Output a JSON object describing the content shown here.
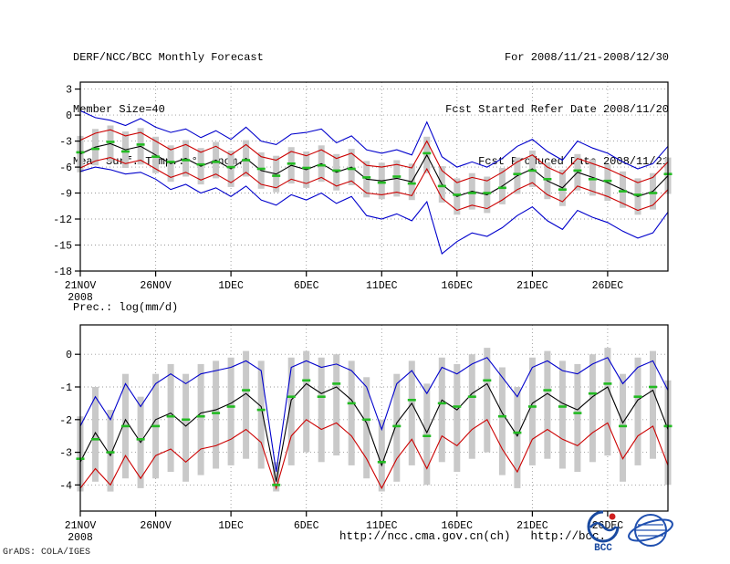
{
  "header": {
    "left_lines": [
      "DERF/NCC/BCC Monthly Forecast",
      "Member Size=40",
      "Mean Surf. Temp.: °C Anom."
    ],
    "right_lines": [
      "For 2008/11/21-2008/12/30",
      "Fcst Started Refer Date 2008/11/20",
      "Fcst Produced Date 2008/11/21"
    ]
  },
  "footer": {
    "url_ncc": "http://ncc.cma.gov.cn(ch)",
    "url_bcc": "http://bcc.",
    "grads_stamp": "GrADS: COLA/IGES",
    "logos": [
      {
        "name": "bcc-logo",
        "label": "BCC"
      },
      {
        "name": "cma-ncc-logo",
        "label": ""
      }
    ]
  },
  "colors": {
    "envelope_line": "#0000cc",
    "quartile_line": "#cc0000",
    "mean_line": "#000000",
    "median_dash": "#22bb22",
    "spread_bar": "#c9c9c9",
    "grid": "#999999",
    "text": "#000000"
  },
  "chart_data": [
    {
      "type": "line",
      "panel": "temperature",
      "title": "Mean Surf. Temp.: °C Anom.",
      "ylim": [
        -18,
        3
      ],
      "yticks": [
        3,
        0,
        -3,
        -6,
        -9,
        -12,
        -15,
        -18
      ],
      "n": 40,
      "x_axis": {
        "tick_days": [
          0,
          5,
          10,
          15,
          20,
          25,
          30,
          35
        ],
        "tick_labels": [
          "21NOV",
          "26NOV",
          "1DEC",
          "6DEC",
          "11DEC",
          "16DEC",
          "21DEC",
          "26DEC"
        ],
        "year_label": "2008"
      },
      "series": [
        {
          "name": "ensemble-max",
          "color": "#0000cc",
          "values": [
            0.5,
            -0.3,
            -0.6,
            -1.2,
            -0.4,
            -1.4,
            -2.0,
            -1.6,
            -2.6,
            -1.8,
            -2.8,
            -1.4,
            -3.0,
            -3.4,
            -2.2,
            -2.0,
            -1.6,
            -3.2,
            -2.4,
            -4.0,
            -4.4,
            -4.0,
            -4.6,
            -0.8,
            -4.8,
            -6.0,
            -5.4,
            -6.0,
            -5.0,
            -3.6,
            -2.8,
            -4.2,
            -5.2,
            -3.0,
            -3.8,
            -4.4,
            -5.4,
            -6.2,
            -5.6,
            -3.6
          ]
        },
        {
          "name": "upper-quartile",
          "color": "#cc0000",
          "values": [
            -2.9,
            -2.1,
            -1.7,
            -2.4,
            -2.0,
            -3.0,
            -4.0,
            -3.4,
            -4.3,
            -3.6,
            -4.6,
            -3.4,
            -4.8,
            -5.2,
            -4.2,
            -4.7,
            -4.0,
            -5.0,
            -4.4,
            -5.8,
            -6.0,
            -5.7,
            -6.1,
            -3.0,
            -6.4,
            -7.8,
            -7.2,
            -7.6,
            -6.6,
            -5.4,
            -4.6,
            -6.0,
            -6.8,
            -5.0,
            -5.6,
            -6.2,
            -7.0,
            -7.8,
            -7.2,
            -5.4
          ]
        },
        {
          "name": "ensemble-mean",
          "color": "#000000",
          "values": [
            -4.5,
            -3.7,
            -3.3,
            -4.0,
            -3.6,
            -4.6,
            -5.6,
            -5.0,
            -5.9,
            -5.2,
            -6.2,
            -5.0,
            -6.4,
            -6.8,
            -5.8,
            -6.3,
            -5.6,
            -6.6,
            -6.0,
            -7.4,
            -7.6,
            -7.3,
            -7.7,
            -4.6,
            -8.0,
            -9.4,
            -8.8,
            -9.2,
            -8.2,
            -7.0,
            -6.2,
            -7.6,
            -8.4,
            -6.6,
            -7.2,
            -7.8,
            -8.6,
            -9.4,
            -8.8,
            -7.0
          ]
        },
        {
          "name": "lower-quartile",
          "color": "#cc0000",
          "values": [
            -6.1,
            -5.3,
            -4.9,
            -5.6,
            -5.2,
            -6.2,
            -7.2,
            -6.6,
            -7.5,
            -6.8,
            -7.8,
            -6.6,
            -8.0,
            -8.4,
            -7.4,
            -7.9,
            -7.2,
            -8.2,
            -7.6,
            -9.0,
            -9.2,
            -8.9,
            -9.3,
            -6.2,
            -9.6,
            -11.0,
            -10.4,
            -10.8,
            -9.8,
            -8.6,
            -7.8,
            -9.2,
            -10.0,
            -8.2,
            -8.8,
            -9.4,
            -10.2,
            -11.0,
            -10.4,
            -8.6
          ]
        },
        {
          "name": "ensemble-min",
          "color": "#0000cc",
          "values": [
            -6.5,
            -6.0,
            -6.3,
            -6.8,
            -6.6,
            -7.4,
            -8.6,
            -8.0,
            -9.0,
            -8.4,
            -9.4,
            -8.2,
            -9.8,
            -10.4,
            -9.2,
            -9.8,
            -9.0,
            -10.2,
            -9.4,
            -11.6,
            -12.0,
            -11.4,
            -12.2,
            -10.0,
            -16.0,
            -14.6,
            -13.6,
            -14.0,
            -13.0,
            -11.6,
            -10.6,
            -12.2,
            -13.2,
            -11.0,
            -11.8,
            -12.4,
            -13.4,
            -14.2,
            -13.6,
            -11.2
          ]
        }
      ],
      "median_dashes": {
        "name": "ensemble-median",
        "color": "#22bb22",
        "values": [
          -4.3,
          -3.9,
          -3.1,
          -4.2,
          -3.4,
          -4.8,
          -5.4,
          -5.2,
          -5.7,
          -5.4,
          -6.0,
          -5.2,
          -6.2,
          -7.0,
          -5.6,
          -6.1,
          -5.8,
          -6.4,
          -6.2,
          -7.2,
          -7.8,
          -7.1,
          -7.9,
          -4.4,
          -8.2,
          -9.2,
          -9.0,
          -9.0,
          -8.4,
          -6.8,
          -6.4,
          -7.4,
          -8.6,
          -6.4,
          -7.4,
          -7.6,
          -8.8,
          -9.2,
          -9.0,
          -6.8
        ]
      },
      "bars": {
        "name": "ensemble-spread",
        "color": "#c9c9c9",
        "top": [
          -2.4,
          -1.6,
          -1.2,
          -1.9,
          -1.5,
          -2.5,
          -3.5,
          -2.9,
          -3.8,
          -3.1,
          -4.1,
          -2.9,
          -4.3,
          -4.7,
          -3.7,
          -4.2,
          -3.5,
          -4.5,
          -3.9,
          -5.3,
          -5.5,
          -5.2,
          -5.6,
          -2.5,
          -5.9,
          -7.3,
          -6.7,
          -7.1,
          -6.1,
          -4.9,
          -4.1,
          -5.5,
          -6.3,
          -4.5,
          -5.1,
          -5.7,
          -6.5,
          -7.3,
          -6.7,
          -4.9
        ],
        "bottom": [
          -6.6,
          -5.8,
          -5.4,
          -6.1,
          -5.7,
          -6.7,
          -7.7,
          -7.1,
          -8.0,
          -7.3,
          -8.3,
          -7.1,
          -8.5,
          -8.9,
          -7.9,
          -8.4,
          -7.7,
          -8.7,
          -8.1,
          -9.5,
          -9.7,
          -9.4,
          -9.8,
          -6.7,
          -10.1,
          -11.5,
          -10.9,
          -11.3,
          -10.3,
          -9.1,
          -8.3,
          -9.7,
          -10.5,
          -8.7,
          -9.3,
          -9.9,
          -10.7,
          -11.5,
          -10.9,
          -9.1
        ]
      }
    },
    {
      "type": "line",
      "panel": "precipitation",
      "title": "Prec.: log(mm/d)",
      "ylim": [
        -4,
        0
      ],
      "yticks": [
        0,
        -1,
        -2,
        -3,
        -4
      ],
      "n": 40,
      "x_axis": {
        "tick_days": [
          0,
          5,
          10,
          15,
          20,
          25,
          30,
          35
        ],
        "tick_labels": [
          "21NOV",
          "26NOV",
          "1DEC",
          "6DEC",
          "11DEC",
          "16DEC",
          "21DEC",
          "26DEC"
        ],
        "year_label": "2008"
      },
      "series": [
        {
          "name": "ensemble-max",
          "color": "#0000cc",
          "values": [
            -2.2,
            -1.3,
            -2.0,
            -0.9,
            -1.6,
            -0.9,
            -0.6,
            -0.9,
            -0.6,
            -0.5,
            -0.4,
            -0.2,
            -0.5,
            -3.6,
            -0.4,
            -0.2,
            -0.4,
            -0.3,
            -0.5,
            -1.0,
            -2.3,
            -0.9,
            -0.5,
            -1.2,
            -0.4,
            -0.6,
            -0.3,
            -0.1,
            -0.7,
            -1.3,
            -0.4,
            -0.2,
            -0.5,
            -0.6,
            -0.3,
            -0.1,
            -0.9,
            -0.4,
            -0.2,
            -1.1
          ]
        },
        {
          "name": "ensemble-mean",
          "color": "#000000",
          "values": [
            -3.3,
            -2.4,
            -3.1,
            -2.0,
            -2.7,
            -2.0,
            -1.8,
            -2.2,
            -1.8,
            -1.7,
            -1.5,
            -1.2,
            -1.6,
            -3.9,
            -1.4,
            -0.9,
            -1.2,
            -1.0,
            -1.4,
            -2.1,
            -3.4,
            -2.1,
            -1.5,
            -2.4,
            -1.4,
            -1.7,
            -1.2,
            -0.9,
            -1.8,
            -2.5,
            -1.5,
            -1.2,
            -1.5,
            -1.7,
            -1.3,
            -1.0,
            -2.1,
            -1.4,
            -1.1,
            -2.3
          ]
        },
        {
          "name": "ensemble-min",
          "color": "#cc0000",
          "values": [
            -4.1,
            -3.5,
            -4.0,
            -3.1,
            -3.8,
            -3.1,
            -2.9,
            -3.3,
            -2.9,
            -2.8,
            -2.6,
            -2.3,
            -2.7,
            -4.1,
            -2.5,
            -2.0,
            -2.3,
            -2.1,
            -2.5,
            -3.2,
            -4.1,
            -3.2,
            -2.6,
            -3.5,
            -2.5,
            -2.8,
            -2.3,
            -2.0,
            -2.9,
            -3.6,
            -2.6,
            -2.3,
            -2.6,
            -2.8,
            -2.4,
            -2.1,
            -3.2,
            -2.5,
            -2.2,
            -3.4
          ]
        }
      ],
      "median_dashes": {
        "name": "ensemble-median",
        "color": "#22bb22",
        "values": [
          -3.2,
          -2.6,
          -3.0,
          -2.2,
          -2.6,
          -2.2,
          -1.9,
          -2.0,
          -1.9,
          -1.8,
          -1.6,
          -1.1,
          -1.7,
          -4.0,
          -1.3,
          -0.8,
          -1.3,
          -0.9,
          -1.5,
          -2.0,
          -3.3,
          -2.2,
          -1.4,
          -2.5,
          -1.5,
          -1.6,
          -1.3,
          -0.8,
          -1.9,
          -2.4,
          -1.6,
          -1.1,
          -1.6,
          -1.8,
          -1.2,
          -0.9,
          -2.2,
          -1.3,
          -1.0,
          -2.2
        ]
      },
      "bars": {
        "name": "ensemble-spread",
        "color": "#c9c9c9",
        "top": [
          -1.9,
          -1.0,
          -1.7,
          -0.6,
          -1.3,
          -0.6,
          -0.3,
          -0.6,
          -0.3,
          -0.2,
          -0.1,
          0.1,
          -0.2,
          -3.3,
          -0.1,
          0.1,
          -0.1,
          0.0,
          -0.2,
          -0.7,
          -2.0,
          -0.6,
          -0.2,
          -0.9,
          -0.1,
          -0.3,
          0.0,
          0.2,
          -0.4,
          -1.0,
          -0.1,
          0.1,
          -0.2,
          -0.3,
          0.0,
          0.2,
          -0.6,
          -0.1,
          0.1,
          -0.8
        ],
        "bottom": [
          -4.2,
          -3.9,
          -4.2,
          -3.8,
          -4.1,
          -3.8,
          -3.6,
          -3.9,
          -3.7,
          -3.5,
          -3.4,
          -3.2,
          -3.5,
          -4.2,
          -3.4,
          -3.0,
          -3.3,
          -3.1,
          -3.4,
          -3.8,
          -4.2,
          -3.9,
          -3.4,
          -4.0,
          -3.3,
          -3.6,
          -3.2,
          -3.0,
          -3.7,
          -4.1,
          -3.4,
          -3.2,
          -3.5,
          -3.6,
          -3.3,
          -3.1,
          -3.9,
          -3.4,
          -3.2,
          -4.0
        ]
      }
    }
  ]
}
